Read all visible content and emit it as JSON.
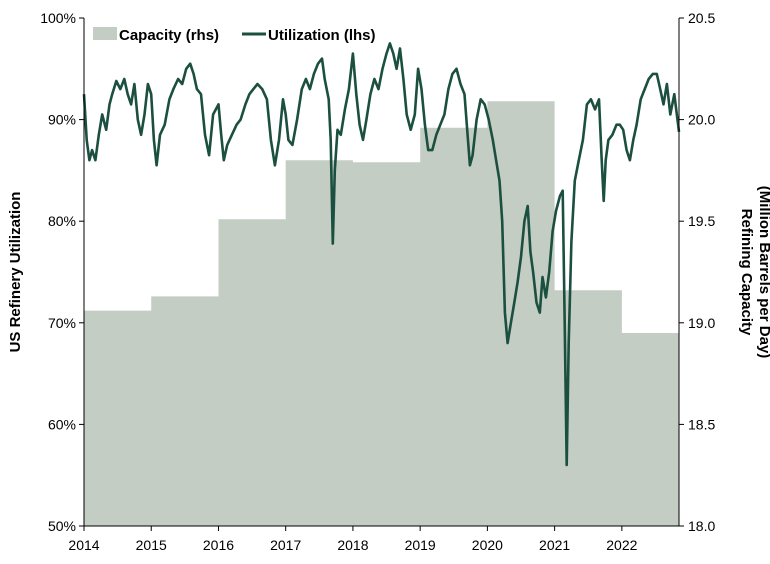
{
  "chart_data": {
    "type": "line",
    "title": "",
    "xlabel": "",
    "ylabel": "US Refinery Utilization",
    "y2label_line1": "Refining Capacity",
    "y2label_line2": "(Million Barrels per Day)",
    "xlim": [
      2014,
      2022.85
    ],
    "ylim": [
      50,
      100
    ],
    "y2lim": [
      18.0,
      20.5
    ],
    "x_ticks": [
      2014,
      2015,
      2016,
      2017,
      2018,
      2019,
      2020,
      2021,
      2022
    ],
    "x_tick_labels": [
      "2014",
      "2015",
      "2016",
      "2017",
      "2018",
      "2019",
      "2020",
      "2021",
      "2022"
    ],
    "y_ticks": [
      50,
      60,
      70,
      80,
      90,
      100
    ],
    "y_tick_labels": [
      "50%",
      "60%",
      "70%",
      "80%",
      "90%",
      "100%"
    ],
    "y2_ticks": [
      18.0,
      18.5,
      19.0,
      19.5,
      20.0,
      20.5
    ],
    "y2_tick_labels": [
      "18.0",
      "18.5",
      "19.0",
      "19.5",
      "20.0",
      "20.5"
    ],
    "legend_position": "top-left",
    "grid": false,
    "series": [
      {
        "name": "Capacity (rhs)",
        "kind": "step-area",
        "axis": "right",
        "color": "#c3cdc4",
        "points": [
          [
            2014.0,
            19.06
          ],
          [
            2015.0,
            19.13
          ],
          [
            2016.0,
            19.51
          ],
          [
            2017.0,
            19.8
          ],
          [
            2018.0,
            19.79
          ],
          [
            2019.0,
            19.96
          ],
          [
            2020.0,
            20.09
          ],
          [
            2021.0,
            19.16
          ],
          [
            2022.0,
            18.95
          ],
          [
            2022.85,
            18.95
          ]
        ]
      },
      {
        "name": "Utilization (lhs)",
        "kind": "line",
        "axis": "left",
        "color": "#1b4f3f",
        "points": [
          [
            2014.0,
            92.5
          ],
          [
            2014.04,
            88.0
          ],
          [
            2014.08,
            86.0
          ],
          [
            2014.12,
            87.0
          ],
          [
            2014.17,
            86.0
          ],
          [
            2014.22,
            88.5
          ],
          [
            2014.27,
            90.5
          ],
          [
            2014.33,
            89.0
          ],
          [
            2014.38,
            91.5
          ],
          [
            2014.42,
            92.5
          ],
          [
            2014.48,
            93.8
          ],
          [
            2014.54,
            93.0
          ],
          [
            2014.6,
            94.0
          ],
          [
            2014.65,
            92.5
          ],
          [
            2014.7,
            91.5
          ],
          [
            2014.75,
            93.5
          ],
          [
            2014.8,
            90.0
          ],
          [
            2014.85,
            88.5
          ],
          [
            2014.9,
            90.5
          ],
          [
            2014.95,
            93.5
          ],
          [
            2015.0,
            92.5
          ],
          [
            2015.04,
            88.0
          ],
          [
            2015.08,
            85.5
          ],
          [
            2015.13,
            88.5
          ],
          [
            2015.2,
            89.5
          ],
          [
            2015.27,
            92.0
          ],
          [
            2015.33,
            93.0
          ],
          [
            2015.4,
            94.0
          ],
          [
            2015.46,
            93.5
          ],
          [
            2015.52,
            95.0
          ],
          [
            2015.58,
            95.5
          ],
          [
            2015.63,
            94.5
          ],
          [
            2015.68,
            93.0
          ],
          [
            2015.74,
            92.5
          ],
          [
            2015.8,
            88.5
          ],
          [
            2015.86,
            86.5
          ],
          [
            2015.92,
            90.5
          ],
          [
            2016.0,
            91.5
          ],
          [
            2016.04,
            88.5
          ],
          [
            2016.08,
            86.0
          ],
          [
            2016.13,
            87.5
          ],
          [
            2016.2,
            88.5
          ],
          [
            2016.27,
            89.5
          ],
          [
            2016.33,
            90.0
          ],
          [
            2016.4,
            91.5
          ],
          [
            2016.46,
            92.5
          ],
          [
            2016.52,
            93.0
          ],
          [
            2016.58,
            93.5
          ],
          [
            2016.65,
            93.0
          ],
          [
            2016.72,
            92.0
          ],
          [
            2016.78,
            88.0
          ],
          [
            2016.84,
            85.5
          ],
          [
            2016.9,
            88.0
          ],
          [
            2016.96,
            92.0
          ],
          [
            2017.0,
            90.5
          ],
          [
            2017.04,
            88.0
          ],
          [
            2017.1,
            87.5
          ],
          [
            2017.17,
            90.0
          ],
          [
            2017.24,
            93.0
          ],
          [
            2017.3,
            94.0
          ],
          [
            2017.36,
            93.0
          ],
          [
            2017.42,
            94.5
          ],
          [
            2017.48,
            95.5
          ],
          [
            2017.54,
            96.0
          ],
          [
            2017.58,
            94.0
          ],
          [
            2017.64,
            92.0
          ],
          [
            2017.67,
            88.0
          ],
          [
            2017.7,
            77.8
          ],
          [
            2017.73,
            85.0
          ],
          [
            2017.77,
            89.0
          ],
          [
            2017.82,
            88.5
          ],
          [
            2017.88,
            91.0
          ],
          [
            2017.94,
            93.0
          ],
          [
            2018.0,
            96.5
          ],
          [
            2018.05,
            92.5
          ],
          [
            2018.1,
            89.5
          ],
          [
            2018.15,
            88.0
          ],
          [
            2018.2,
            90.0
          ],
          [
            2018.26,
            92.5
          ],
          [
            2018.32,
            94.0
          ],
          [
            2018.38,
            93.0
          ],
          [
            2018.44,
            95.0
          ],
          [
            2018.5,
            96.5
          ],
          [
            2018.55,
            97.5
          ],
          [
            2018.6,
            96.5
          ],
          [
            2018.65,
            95.0
          ],
          [
            2018.7,
            97.0
          ],
          [
            2018.75,
            94.0
          ],
          [
            2018.8,
            90.5
          ],
          [
            2018.86,
            89.0
          ],
          [
            2018.92,
            90.5
          ],
          [
            2018.97,
            95.0
          ],
          [
            2019.02,
            93.0
          ],
          [
            2019.07,
            89.5
          ],
          [
            2019.12,
            87.0
          ],
          [
            2019.18,
            87.0
          ],
          [
            2019.24,
            88.5
          ],
          [
            2019.3,
            89.5
          ],
          [
            2019.36,
            90.5
          ],
          [
            2019.42,
            93.0
          ],
          [
            2019.48,
            94.5
          ],
          [
            2019.54,
            95.0
          ],
          [
            2019.6,
            93.5
          ],
          [
            2019.66,
            92.5
          ],
          [
            2019.7,
            89.0
          ],
          [
            2019.74,
            85.5
          ],
          [
            2019.78,
            86.5
          ],
          [
            2019.84,
            90.0
          ],
          [
            2019.9,
            92.0
          ],
          [
            2019.96,
            91.5
          ],
          [
            2020.02,
            90.0
          ],
          [
            2020.08,
            88.0
          ],
          [
            2020.13,
            86.0
          ],
          [
            2020.18,
            84.0
          ],
          [
            2020.22,
            80.0
          ],
          [
            2020.26,
            71.0
          ],
          [
            2020.3,
            68.0
          ],
          [
            2020.35,
            70.0
          ],
          [
            2020.4,
            72.0
          ],
          [
            2020.45,
            74.0
          ],
          [
            2020.5,
            76.5
          ],
          [
            2020.55,
            80.0
          ],
          [
            2020.6,
            81.5
          ],
          [
            2020.64,
            77.0
          ],
          [
            2020.68,
            75.0
          ],
          [
            2020.73,
            72.0
          ],
          [
            2020.78,
            71.0
          ],
          [
            2020.82,
            74.5
          ],
          [
            2020.87,
            72.5
          ],
          [
            2020.92,
            75.0
          ],
          [
            2020.97,
            79.0
          ],
          [
            2021.02,
            81.0
          ],
          [
            2021.08,
            82.5
          ],
          [
            2021.12,
            83.0
          ],
          [
            2021.15,
            70.0
          ],
          [
            2021.18,
            56.0
          ],
          [
            2021.21,
            68.0
          ],
          [
            2021.25,
            78.0
          ],
          [
            2021.3,
            84.0
          ],
          [
            2021.36,
            86.0
          ],
          [
            2021.42,
            88.0
          ],
          [
            2021.48,
            91.5
          ],
          [
            2021.54,
            92.0
          ],
          [
            2021.6,
            91.0
          ],
          [
            2021.66,
            92.0
          ],
          [
            2021.7,
            86.0
          ],
          [
            2021.73,
            82.0
          ],
          [
            2021.76,
            86.0
          ],
          [
            2021.8,
            88.0
          ],
          [
            2021.86,
            88.5
          ],
          [
            2021.92,
            89.5
          ],
          [
            2021.97,
            89.5
          ],
          [
            2022.02,
            89.0
          ],
          [
            2022.07,
            87.0
          ],
          [
            2022.12,
            86.0
          ],
          [
            2022.17,
            88.0
          ],
          [
            2022.22,
            89.5
          ],
          [
            2022.28,
            92.0
          ],
          [
            2022.34,
            93.0
          ],
          [
            2022.4,
            94.0
          ],
          [
            2022.46,
            94.5
          ],
          [
            2022.52,
            94.5
          ],
          [
            2022.57,
            93.0
          ],
          [
            2022.62,
            91.5
          ],
          [
            2022.67,
            93.5
          ],
          [
            2022.72,
            90.5
          ],
          [
            2022.78,
            92.5
          ],
          [
            2022.85,
            88.8
          ]
        ]
      }
    ]
  }
}
